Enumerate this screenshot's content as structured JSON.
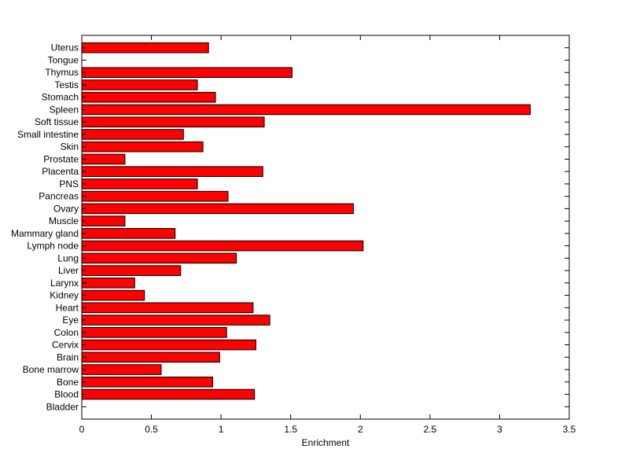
{
  "chart_data": {
    "type": "bar",
    "orientation": "horizontal",
    "xlabel": "Enrichment",
    "ylabel": "",
    "xlim": [
      0,
      3.5
    ],
    "xticks": [
      0,
      0.5,
      1,
      1.5,
      2,
      2.5,
      3,
      3.5
    ],
    "xtick_labels": [
      "0",
      "0.5",
      "1",
      "1.5",
      "2",
      "2.5",
      "3",
      "3.5"
    ],
    "grid": false,
    "bar_color": "#ff0000",
    "categories": [
      "Bladder",
      "Blood",
      "Bone",
      "Bone marrow",
      "Brain",
      "Cervix",
      "Colon",
      "Eye",
      "Heart",
      "Kidney",
      "Larynx",
      "Liver",
      "Lung",
      "Lymph node",
      "Mammary gland",
      "Muscle",
      "Ovary",
      "Pancreas",
      "PNS",
      "Placenta",
      "Prostate",
      "Skin",
      "Small intestine",
      "Soft tissue",
      "Spleen",
      "Stomach",
      "Testis",
      "Thymus",
      "Tongue",
      "Uterus"
    ],
    "values": [
      0,
      1.24,
      0.94,
      0.57,
      0.99,
      1.25,
      1.04,
      1.35,
      1.23,
      0.45,
      0.38,
      0.71,
      1.11,
      2.02,
      0.67,
      0.31,
      1.95,
      1.05,
      0.83,
      1.3,
      0.31,
      0.87,
      0.73,
      1.31,
      3.22,
      0.96,
      0.83,
      1.51,
      0,
      0.91
    ]
  }
}
